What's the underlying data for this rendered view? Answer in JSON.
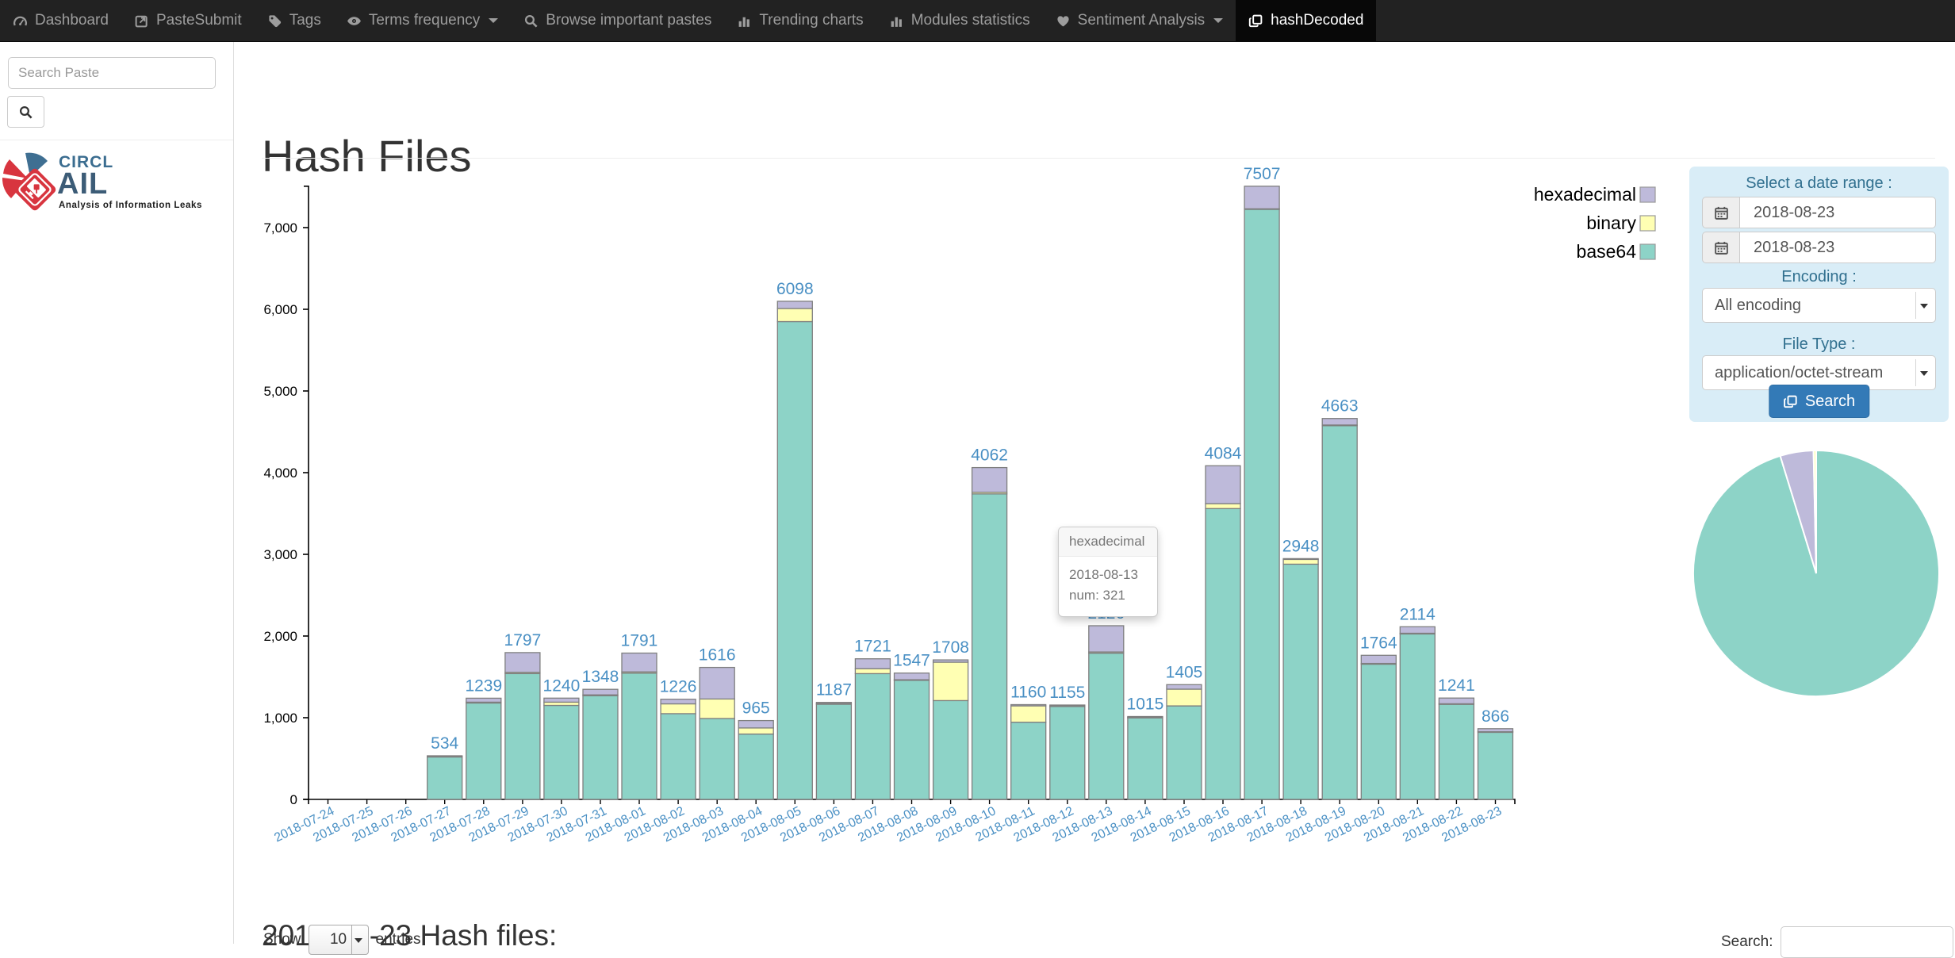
{
  "navbar": {
    "items": [
      {
        "label": "Dashboard",
        "icon": "gauge",
        "active": false,
        "caret": false
      },
      {
        "label": "PasteSubmit",
        "icon": "submit",
        "active": false,
        "caret": false
      },
      {
        "label": "Tags",
        "icon": "tag",
        "active": false,
        "caret": false
      },
      {
        "label": "Terms frequency",
        "icon": "eye",
        "active": false,
        "caret": true
      },
      {
        "label": "Browse important pastes",
        "icon": "search",
        "active": false,
        "caret": false
      },
      {
        "label": "Trending charts",
        "icon": "bars",
        "active": false,
        "caret": false
      },
      {
        "label": "Modules statistics",
        "icon": "bars",
        "active": false,
        "caret": false
      },
      {
        "label": "Sentiment Analysis",
        "icon": "heart",
        "active": false,
        "caret": true
      },
      {
        "label": "hashDecoded",
        "icon": "clone",
        "active": true,
        "caret": false
      }
    ]
  },
  "sidebar": {
    "search_placeholder": "Search Paste",
    "logo": {
      "circl": "CIRCL",
      "ail": "AIL",
      "subtitle": "Analysis of Information Leaks"
    }
  },
  "page": {
    "title": "Hash Files"
  },
  "chart_data": [
    {
      "type": "bar",
      "stacked": true,
      "title": "",
      "xlabel": "",
      "ylabel": "",
      "ylim": [
        0,
        7507
      ],
      "yticks": [
        0,
        1000,
        2000,
        3000,
        4000,
        5000,
        6000,
        7000
      ],
      "grid": false,
      "legend_position": "top-right",
      "legend_order": [
        "hexadecimal",
        "binary",
        "base64"
      ],
      "categories": [
        "2018-07-24",
        "2018-07-25",
        "2018-07-26",
        "2018-07-27",
        "2018-07-28",
        "2018-07-29",
        "2018-07-30",
        "2018-07-31",
        "2018-08-01",
        "2018-08-02",
        "2018-08-03",
        "2018-08-04",
        "2018-08-05",
        "2018-08-06",
        "2018-08-07",
        "2018-08-08",
        "2018-08-09",
        "2018-08-10",
        "2018-08-11",
        "2018-08-12",
        "2018-08-13",
        "2018-08-14",
        "2018-08-15",
        "2018-08-16",
        "2018-08-17",
        "2018-08-18",
        "2018-08-19",
        "2018-08-20",
        "2018-08-21",
        "2018-08-22",
        "2018-08-23"
      ],
      "series": [
        {
          "name": "base64",
          "color": "#8dd3c7",
          "values": [
            0,
            0,
            0,
            520,
            1180,
            1540,
            1150,
            1270,
            1545,
            1050,
            990,
            800,
            5850,
            1165,
            1540,
            1460,
            1210,
            3740,
            945,
            1140,
            1790,
            1000,
            1145,
            3560,
            7225,
            2880,
            4575,
            1655,
            2025,
            1165,
            825
          ]
        },
        {
          "name": "binary",
          "color": "#ffffb3",
          "values": [
            0,
            0,
            0,
            6,
            10,
            15,
            40,
            10,
            16,
            120,
            240,
            75,
            160,
            8,
            60,
            5,
            470,
            20,
            200,
            5,
            15,
            5,
            205,
            60,
            5,
            58,
            8,
            9,
            9,
            6,
            3
          ]
        },
        {
          "name": "hexadecimal",
          "color": "#bebada",
          "values": [
            0,
            0,
            0,
            8,
            49,
            242,
            50,
            68,
            230,
            56,
            386,
            90,
            88,
            14,
            121,
            82,
            28,
            302,
            15,
            10,
            321,
            10,
            55,
            464,
            277,
            10,
            80,
            100,
            80,
            70,
            38
          ]
        }
      ],
      "totals": [
        0,
        0,
        0,
        534,
        1239,
        1797,
        1240,
        1348,
        1791,
        1226,
        1616,
        965,
        6098,
        1187,
        1721,
        1547,
        1708,
        4062,
        1160,
        1155,
        2126,
        1015,
        1405,
        4084,
        7507,
        2948,
        4663,
        1764,
        2114,
        1241,
        866
      ]
    },
    {
      "type": "pie",
      "title": "",
      "slices": [
        {
          "label": "base64",
          "value": 825,
          "color": "#8dd3c7"
        },
        {
          "label": "hexadecimal",
          "value": 38,
          "color": "#bebada"
        },
        {
          "label": "binary",
          "value": 3,
          "color": "#ffffb3"
        }
      ]
    }
  ],
  "tooltip": {
    "header": "hexadecimal",
    "line1": "2018-08-13",
    "line2": "num: 321"
  },
  "filter_panel": {
    "title": "Select a date range :",
    "date_from": "2018-08-23",
    "date_to": "2018-08-23",
    "encoding_label": "Encoding :",
    "encoding_value": "All encoding",
    "file_type_label": "File Type :",
    "file_type_value": "application/octet-stream",
    "search_button": "Search"
  },
  "table_section": {
    "title": "2018-08-23 Hash files:",
    "show_label": "Show",
    "entries_value": "10",
    "entries_label": "entries",
    "search_label": "Search:"
  },
  "colors": {
    "label_blue": "#4a90c4",
    "axis_black": "#000000",
    "bar_stroke": "#7f7f7f",
    "panel_bg": "#d9edf7",
    "panel_text": "#31708f",
    "button_blue": "#337ab7",
    "navbar_bg": "#222222",
    "navbar_active_bg": "#080808"
  }
}
